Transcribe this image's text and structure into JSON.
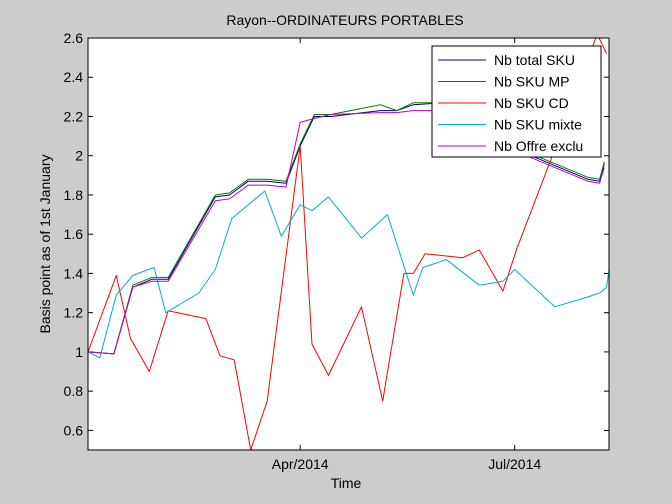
{
  "chart_data": {
    "type": "line",
    "title": "Rayon--ORDINATEURS PORTABLES",
    "xlabel": "Time",
    "ylabel": "Basis point as of 1st January",
    "xlim": [
      "2014-01-01",
      "2014-08-10"
    ],
    "ylim": [
      0.5,
      2.6
    ],
    "yticks": [
      0.6,
      0.8,
      1,
      1.2,
      1.4,
      1.6,
      1.8,
      2,
      2.2,
      2.4,
      2.6
    ],
    "xticks": [
      {
        "date": "2014-04-01",
        "label": "Apr/2014"
      },
      {
        "date": "2014-07-01",
        "label": "Jul/2014"
      }
    ],
    "grid": false,
    "legend_position": "top-right",
    "series": [
      {
        "name": "Nb total SKU",
        "color": "#000080",
        "points": [
          [
            "2014-01-01",
            1.0
          ],
          [
            "2014-01-12",
            0.99
          ],
          [
            "2014-01-20",
            1.33
          ],
          [
            "2014-01-28",
            1.37
          ],
          [
            "2014-02-04",
            1.37
          ],
          [
            "2014-02-24",
            1.79
          ],
          [
            "2014-03-02",
            1.8
          ],
          [
            "2014-03-10",
            1.87
          ],
          [
            "2014-03-18",
            1.87
          ],
          [
            "2014-03-26",
            1.86
          ],
          [
            "2014-04-01",
            2.05
          ],
          [
            "2014-04-07",
            2.2
          ],
          [
            "2014-04-14",
            2.2
          ],
          [
            "2014-05-05",
            2.23
          ],
          [
            "2014-05-12",
            2.23
          ],
          [
            "2014-05-19",
            2.26
          ],
          [
            "2014-06-01",
            2.27
          ],
          [
            "2014-06-16",
            2.28
          ],
          [
            "2014-06-20",
            2.26
          ],
          [
            "2014-07-01",
            2.03
          ],
          [
            "2014-07-08",
            2.0
          ],
          [
            "2014-08-01",
            1.88
          ],
          [
            "2014-08-06",
            1.87
          ],
          [
            "2014-08-08",
            1.96
          ]
        ]
      },
      {
        "name": "Nb SKU MP",
        "color": "#008000",
        "points": [
          [
            "2014-01-01",
            1.0
          ],
          [
            "2014-01-12",
            0.99
          ],
          [
            "2014-01-20",
            1.34
          ],
          [
            "2014-01-28",
            1.38
          ],
          [
            "2014-02-04",
            1.38
          ],
          [
            "2014-02-24",
            1.8
          ],
          [
            "2014-03-02",
            1.81
          ],
          [
            "2014-03-10",
            1.88
          ],
          [
            "2014-03-18",
            1.88
          ],
          [
            "2014-03-26",
            1.87
          ],
          [
            "2014-04-01",
            2.06
          ],
          [
            "2014-04-07",
            2.21
          ],
          [
            "2014-04-14",
            2.21
          ],
          [
            "2014-05-05",
            2.26
          ],
          [
            "2014-05-12",
            2.23
          ],
          [
            "2014-05-19",
            2.27
          ],
          [
            "2014-06-01",
            2.27
          ],
          [
            "2014-06-16",
            2.29
          ],
          [
            "2014-06-20",
            2.27
          ],
          [
            "2014-07-01",
            2.04
          ],
          [
            "2014-07-08",
            2.01
          ],
          [
            "2014-08-01",
            1.89
          ],
          [
            "2014-08-06",
            1.88
          ],
          [
            "2014-08-08",
            1.97
          ]
        ]
      },
      {
        "name": "Nb SKU CD",
        "color": "#ff0000",
        "points": [
          [
            "2014-01-01",
            1.0
          ],
          [
            "2014-01-13",
            1.39
          ],
          [
            "2014-01-19",
            1.07
          ],
          [
            "2014-01-27",
            0.9
          ],
          [
            "2014-02-04",
            1.21
          ],
          [
            "2014-02-20",
            1.17
          ],
          [
            "2014-02-26",
            0.98
          ],
          [
            "2014-03-04",
            0.96
          ],
          [
            "2014-03-11",
            0.5
          ],
          [
            "2014-03-18",
            0.75
          ],
          [
            "2014-04-01",
            2.05
          ],
          [
            "2014-04-06",
            1.04
          ],
          [
            "2014-04-13",
            0.88
          ],
          [
            "2014-04-27",
            1.23
          ],
          [
            "2014-05-06",
            0.75
          ],
          [
            "2014-05-15",
            1.4
          ],
          [
            "2014-05-19",
            1.4
          ],
          [
            "2014-05-24",
            1.5
          ],
          [
            "2014-06-09",
            1.48
          ],
          [
            "2014-06-16",
            1.52
          ],
          [
            "2014-06-26",
            1.31
          ],
          [
            "2014-07-02",
            1.53
          ],
          [
            "2014-07-17",
            2.0
          ],
          [
            "2014-08-05",
            2.62
          ],
          [
            "2014-08-09",
            2.52
          ]
        ]
      },
      {
        "name": "Nb SKU mixte",
        "color": "#00b0c8",
        "points": [
          [
            "2014-01-01",
            1.0
          ],
          [
            "2014-01-06",
            0.97
          ],
          [
            "2014-01-13",
            1.29
          ],
          [
            "2014-01-20",
            1.39
          ],
          [
            "2014-01-29",
            1.43
          ],
          [
            "2014-02-03",
            1.2
          ],
          [
            "2014-02-17",
            1.3
          ],
          [
            "2014-02-24",
            1.42
          ],
          [
            "2014-03-03",
            1.68
          ],
          [
            "2014-03-17",
            1.82
          ],
          [
            "2014-03-24",
            1.59
          ],
          [
            "2014-04-01",
            1.75
          ],
          [
            "2014-04-06",
            1.72
          ],
          [
            "2014-04-13",
            1.79
          ],
          [
            "2014-04-27",
            1.58
          ],
          [
            "2014-05-08",
            1.7
          ],
          [
            "2014-05-19",
            1.29
          ],
          [
            "2014-05-23",
            1.43
          ],
          [
            "2014-06-02",
            1.47
          ],
          [
            "2014-06-16",
            1.34
          ],
          [
            "2014-06-26",
            1.36
          ],
          [
            "2014-07-01",
            1.42
          ],
          [
            "2014-07-18",
            1.23
          ],
          [
            "2014-08-01",
            1.28
          ],
          [
            "2014-08-06",
            1.3
          ],
          [
            "2014-08-09",
            1.33
          ],
          [
            "2014-08-10",
            1.42
          ]
        ]
      },
      {
        "name": "Nb Offre exclu",
        "color": "#c000c0",
        "points": [
          [
            "2014-01-01",
            1.0
          ],
          [
            "2014-01-12",
            0.99
          ],
          [
            "2014-01-20",
            1.33
          ],
          [
            "2014-01-28",
            1.36
          ],
          [
            "2014-02-04",
            1.36
          ],
          [
            "2014-02-24",
            1.77
          ],
          [
            "2014-03-02",
            1.78
          ],
          [
            "2014-03-10",
            1.85
          ],
          [
            "2014-03-18",
            1.85
          ],
          [
            "2014-03-26",
            1.84
          ],
          [
            "2014-04-01",
            2.17
          ],
          [
            "2014-04-07",
            2.19
          ],
          [
            "2014-04-14",
            2.21
          ],
          [
            "2014-05-05",
            2.22
          ],
          [
            "2014-05-12",
            2.22
          ],
          [
            "2014-05-19",
            2.23
          ],
          [
            "2014-06-01",
            2.23
          ],
          [
            "2014-06-16",
            2.24
          ],
          [
            "2014-06-20",
            2.25
          ],
          [
            "2014-07-01",
            2.03
          ],
          [
            "2014-07-08",
            1.99
          ],
          [
            "2014-08-01",
            1.87
          ],
          [
            "2014-08-06",
            1.86
          ],
          [
            "2014-08-08",
            1.94
          ]
        ]
      }
    ]
  }
}
